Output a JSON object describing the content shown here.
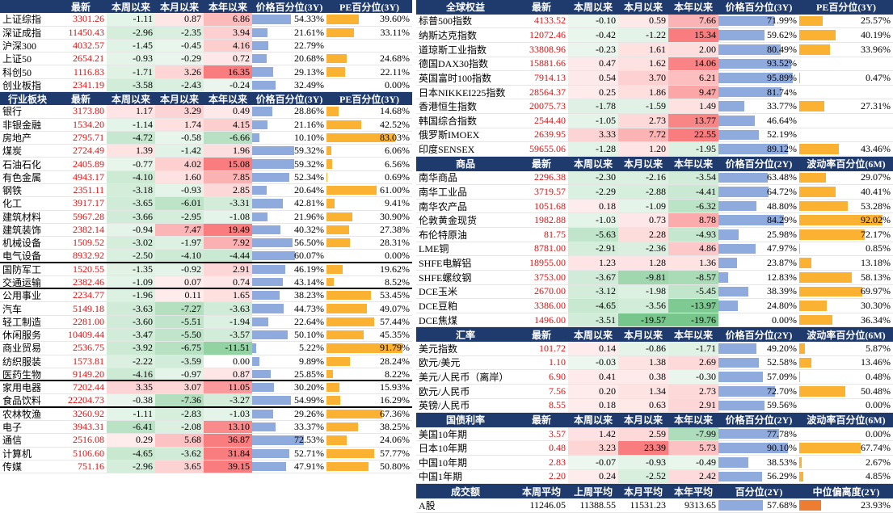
{
  "left": {
    "sections": [
      {
        "header": [
          null,
          "最新",
          "本周以来",
          "本月以来",
          "本年以来",
          "价格百分位(3Y)",
          "PE百分位(3Y)"
        ],
        "rows": [
          [
            "上证综指",
            "3301.26",
            "-1.11",
            "0.87",
            "6.86",
            "54.33%",
            "39.60%"
          ],
          [
            "深证成指",
            "11450.43",
            "-2.96",
            "-2.35",
            "3.94",
            "21.61%",
            "33.11%"
          ],
          [
            "沪深300",
            "4032.57",
            "-1.45",
            "-0.45",
            "4.16",
            "22.79%",
            null
          ],
          [
            "上证50",
            "2654.21",
            "-0.93",
            "-0.29",
            "0.72",
            "20.68%",
            "24.68%"
          ],
          [
            "科创50",
            "1116.83",
            "-1.71",
            "3.26",
            "16.35",
            "29.13%",
            "22.11%"
          ],
          [
            "创业板指",
            "2341.19",
            "-3.58",
            "-2.43",
            "-0.24",
            "32.49%",
            "0.00%"
          ]
        ]
      },
      {
        "header": [
          "行业板块",
          "最新",
          "本周以来",
          "本月以来",
          "本年以来",
          "价格百分位(3Y)",
          "PE百分位(3Y)"
        ],
        "rows": [
          [
            "银行",
            "3173.80",
            "1.17",
            "3.29",
            "0.49",
            "28.86%",
            "14.68%"
          ],
          [
            "非银金融",
            "1534.20",
            "-1.14",
            "1.74",
            "4.15",
            "21.16%",
            "42.52%"
          ],
          [
            "房地产",
            "2795.71",
            "-4.72",
            "-0.58",
            "-6.66",
            "10.10%",
            "83.03%"
          ],
          [
            "煤炭",
            "2724.49",
            "1.39",
            "-1.42",
            "1.96",
            "59.32%",
            "6.06%"
          ],
          [
            "石油石化",
            "2405.89",
            "-0.77",
            "4.02",
            "15.08",
            "59.32%",
            "6.56%"
          ],
          [
            "有色金属",
            "4943.17",
            "-4.10",
            "1.60",
            "7.85",
            "52.34%",
            "0.69%"
          ],
          [
            "钢铁",
            "2351.11",
            "-3.18",
            "-0.93",
            "2.85",
            "20.64%",
            "61.00%"
          ],
          [
            "化工",
            "3917.17",
            "-3.65",
            "-6.01",
            "-3.31",
            "42.81%",
            "9.41%"
          ],
          [
            "建筑材料",
            "5967.28",
            "-3.66",
            "-2.95",
            "-1.08",
            "21.96%",
            "30.90%"
          ],
          [
            "建筑装饰",
            "2382.14",
            "-0.94",
            "7.47",
            "19.49",
            "40.32%",
            "27.38%"
          ],
          [
            "机械设备",
            "1509.52",
            "-3.02",
            "-1.97",
            "7.92",
            "56.50%",
            "28.31%"
          ],
          [
            "电气设备",
            "8932.92",
            "-2.50",
            "-4.10",
            "-4.44",
            "60.07%",
            "0.00%"
          ],
          [
            "国防军工",
            "1520.55",
            "-1.35",
            "-0.92",
            "2.91",
            "46.19%",
            "19.62%"
          ],
          [
            "交通运输",
            "2382.46",
            "-1.09",
            "0.07",
            "0.74",
            "43.14%",
            "8.52%"
          ],
          [
            "公用事业",
            "2234.77",
            "-1.96",
            "0.11",
            "1.65",
            "38.23%",
            "53.45%"
          ],
          [
            "汽车",
            "5149.18",
            "-3.63",
            "-7.27",
            "-3.63",
            "44.73%",
            "49.07%"
          ],
          [
            "轻工制造",
            "2281.00",
            "-3.60",
            "-5.51",
            "-1.94",
            "22.64%",
            "57.44%"
          ],
          [
            "休闲服务",
            "10409.44",
            "-3.47",
            "-5.50",
            "-3.57",
            "50.10%",
            "45.35%"
          ],
          [
            "商业贸易",
            "2536.75",
            "-3.92",
            "-6.75",
            "-11.51",
            "5.22%",
            "91.79%"
          ],
          [
            "纺织服装",
            "1573.81",
            "-2.22",
            "-3.59",
            "0.00",
            "9.89%",
            "28.24%"
          ],
          [
            "医药生物",
            "9149.20",
            "-4.16",
            "-0.97",
            "0.87",
            "25.85%",
            "8.22%"
          ],
          [
            "家用电器",
            "7202.44",
            "3.35",
            "3.07",
            "11.05",
            "30.20%",
            "15.93%"
          ],
          [
            "食品饮料",
            "22204.73",
            "-0.38",
            "-7.36",
            "-3.27",
            "54.99%",
            "16.29%"
          ],
          [
            "农林牧渔",
            "3260.92",
            "-1.11",
            "-2.83",
            "-1.03",
            "29.26%",
            "67.36%"
          ],
          [
            "电子",
            "3943.31",
            "-6.41",
            "-2.08",
            "13.10",
            "33.37%",
            "38.25%"
          ],
          [
            "通信",
            "2516.08",
            "0.29",
            "5.68",
            "36.87",
            "72.53%",
            "24.06%"
          ],
          [
            "计算机",
            "5106.60",
            "-4.65",
            "-3.62",
            "31.84",
            "52.71%",
            "57.77%"
          ],
          [
            "传媒",
            "751.16",
            "-2.96",
            "3.65",
            "39.15",
            "47.91%",
            "50.80%"
          ]
        ]
      }
    ]
  },
  "right": {
    "sections": [
      {
        "header": [
          "全球权益",
          "最新",
          "本周以来",
          "本月以来",
          "本年以来",
          "价格百分位(3Y)",
          "PE百分位(3Y)"
        ],
        "rows": [
          [
            "标普500指数",
            "4133.52",
            "-0.10",
            "0.59",
            "7.66",
            "71.99%",
            "25.57%"
          ],
          [
            "纳斯达克指数",
            "12072.46",
            "-0.42",
            "-1.22",
            "15.34",
            "59.62%",
            "40.19%"
          ],
          [
            "道琼斯工业指数",
            "33808.96",
            "-0.23",
            "1.61",
            "2.00",
            "80.49%",
            "33.96%"
          ],
          [
            "德国DAX30指数",
            "15881.66",
            "0.47",
            "1.62",
            "14.06",
            "93.52%",
            null
          ],
          [
            "英国富时100指数",
            "7914.13",
            "0.54",
            "3.70",
            "6.21",
            "95.89%",
            "0.47%"
          ],
          [
            "日本NIKKEI225指数",
            "28564.37",
            "0.25",
            "1.86",
            "9.47",
            "81.74%",
            null
          ],
          [
            "香港恒生指数",
            "20075.73",
            "-1.78",
            "-1.59",
            "1.49",
            "33.77%",
            "27.31%"
          ],
          [
            "韩国综合指数",
            "2544.40",
            "-1.05",
            "2.73",
            "13.77",
            "46.64%",
            null
          ],
          [
            "俄罗斯IMOEX",
            "2639.95",
            "3.33",
            "7.72",
            "22.55",
            "52.19%",
            null
          ],
          [
            "印度SENSEX",
            "59655.06",
            "-1.28",
            "1.20",
            "-1.95",
            "89.12%",
            "43.46%"
          ]
        ]
      },
      {
        "header": [
          "商品",
          "最新",
          "本周以来",
          "本月以来",
          "本年以来",
          "价格百分位(2Y)",
          "波动率百分位(6M)"
        ],
        "rows": [
          [
            "南华商品",
            "2296.38",
            "-2.30",
            "-2.16",
            "-3.54",
            "63.48%",
            "29.07%"
          ],
          [
            "南华工业品",
            "3719.57",
            "-2.29",
            "-2.88",
            "-4.41",
            "64.72%",
            "40.41%"
          ],
          [
            "南华农产品",
            "1051.68",
            "0.18",
            "-1.09",
            "-6.32",
            "48.80%",
            "53.28%"
          ],
          [
            "伦敦黄金现货",
            "1982.88",
            "-1.03",
            "0.73",
            "8.78",
            "84.29%",
            "92.02%"
          ],
          [
            "布伦特原油",
            "81.75",
            "-5.63",
            "2.28",
            "-4.93",
            "25.98%",
            "72.17%"
          ],
          [
            "LME铜",
            "8781.00",
            "-2.91",
            "-2.36",
            "4.86",
            "47.97%",
            "0.85%"
          ],
          [
            "SHFE电解铝",
            "18955.00",
            "1.23",
            "1.28",
            "1.36",
            "23.87%",
            "13.18%"
          ],
          [
            "SHFE螺纹钢",
            "3753.00",
            "-3.67",
            "-9.81",
            "-8.57",
            "12.83%",
            "58.13%"
          ],
          [
            "DCE玉米",
            "2670.00",
            "-3.12",
            "-1.98",
            "-5.45",
            "38.39%",
            "69.97%"
          ],
          [
            "DCE豆粕",
            "3386.00",
            "-4.65",
            "-3.56",
            "-13.97",
            "24.80%",
            "30.30%"
          ],
          [
            "DCE焦煤",
            "1496.00",
            "-3.51",
            "-19.57",
            "-19.76",
            "0.00%",
            "36.34%"
          ]
        ]
      },
      {
        "header": [
          "汇率",
          "最新",
          "本周以来",
          "本月以来",
          "本年以来",
          "价格百分位(2Y)",
          "波动率百分位(6M)"
        ],
        "rows": [
          [
            "美元指数",
            "101.72",
            "0.14",
            "-0.86",
            "-1.71",
            "49.20%",
            "5.87%"
          ],
          [
            "欧元/美元",
            "1.10",
            "-0.03",
            "1.38",
            "2.69",
            "52.58%",
            "13.46%"
          ],
          [
            "美元/人民币（离岸）",
            "6.90",
            "0.41",
            "0.38",
            "-0.30",
            "57.09%",
            "0.48%"
          ],
          [
            "欧元/人民币",
            "7.56",
            "0.20",
            "1.34",
            "2.73",
            "72.70%",
            "50.48%"
          ],
          [
            "英镑/人民币",
            "8.55",
            "0.18",
            "0.63",
            "2.91",
            "59.56%",
            "0.00%"
          ]
        ]
      },
      {
        "header": [
          "国债利率",
          "最新",
          "本周以来",
          "本月以来",
          "本年以来",
          "价格百分位(2Y)",
          "波动率百分位(6M)"
        ],
        "rows": [
          [
            "美国10年期",
            "3.57",
            "1.42",
            "2.59",
            "-7.99",
            "77.78%",
            "0.00%"
          ],
          [
            "日本10年期",
            "0.48",
            "3.23",
            "23.39",
            "5.73",
            "90.10%",
            "67.74%"
          ],
          [
            "中国10年期",
            "2.83",
            "-0.07",
            "-0.93",
            "-0.49",
            "38.53%",
            "2.67%"
          ],
          [
            "中国1年期",
            "2.20",
            "0.24",
            "-2.52",
            "2.42",
            "56.29%",
            "4.85%"
          ]
        ]
      },
      {
        "header": [
          "成交额",
          "本周平均",
          "上周平均",
          "本月平均",
          "本年平均",
          "百分位(2Y)",
          "中位偏离度(2Y)"
        ],
        "rows": [
          [
            "A股",
            "11246.05",
            "11388.55",
            "11531.23",
            "9313.65",
            "57.68%",
            "23.93%"
          ]
        ]
      }
    ]
  }
}
